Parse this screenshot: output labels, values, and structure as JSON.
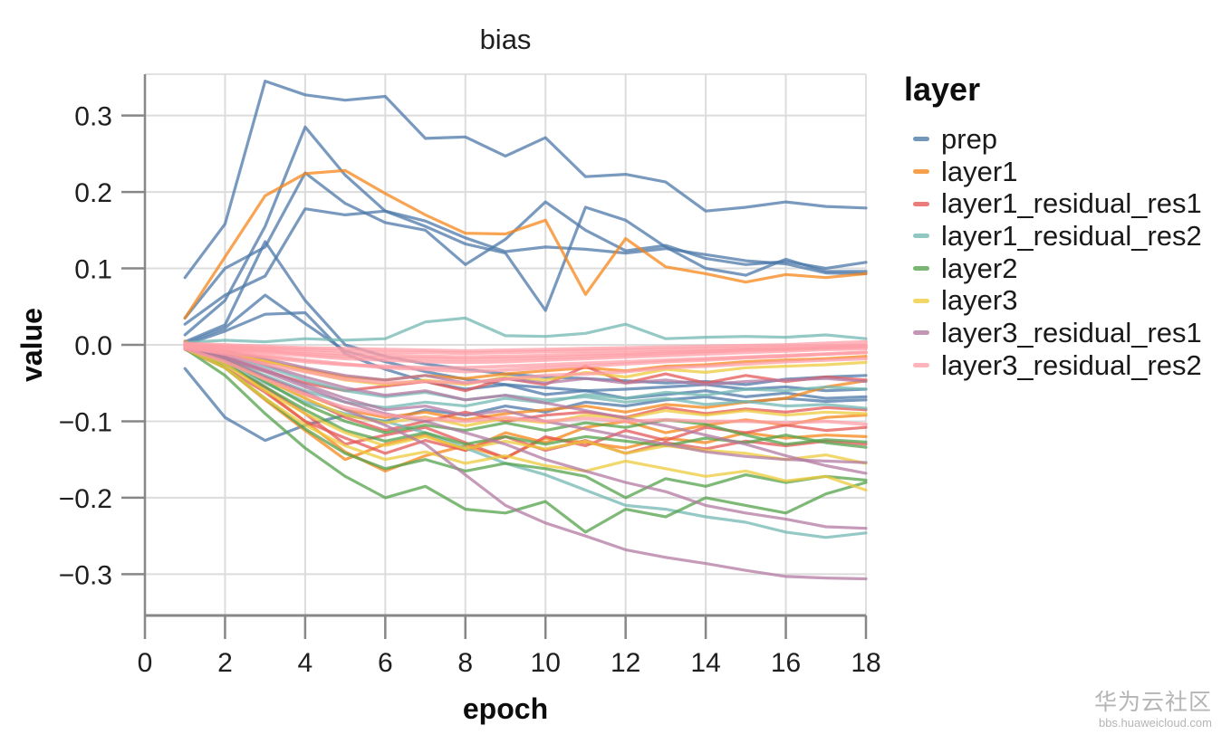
{
  "chart_data": {
    "type": "line",
    "title": "bias",
    "xlabel": "epoch",
    "ylabel": "value",
    "legend_title": "layer",
    "legend_position": "right",
    "grid": true,
    "xlim": [
      0,
      18
    ],
    "ylim": [
      -0.354,
      0.354
    ],
    "x_ticks": [
      0,
      2,
      4,
      6,
      8,
      10,
      12,
      14,
      16,
      18
    ],
    "y_ticks": [
      0.3,
      0.2,
      0.1,
      0.0,
      -0.1,
      -0.2,
      -0.3
    ],
    "x": [
      1,
      2,
      3,
      4,
      5,
      6,
      7,
      8,
      9,
      10,
      11,
      12,
      13,
      14,
      15,
      16,
      17,
      18
    ],
    "series": [
      {
        "name": "prep",
        "color": "#4c78a8",
        "lines": [
          [
            0.088,
            0.158,
            0.345,
            0.327,
            0.32,
            0.325,
            0.27,
            0.272,
            0.247,
            0.271,
            0.22,
            0.223,
            0.213,
            0.175,
            0.18,
            0.187,
            0.181,
            0.179
          ],
          [
            0.013,
            0.058,
            0.155,
            0.285,
            0.222,
            0.175,
            0.155,
            0.132,
            0.12,
            0.045,
            0.18,
            0.163,
            0.128,
            0.1,
            0.091,
            0.112,
            0.096,
            0.096
          ],
          [
            0.035,
            0.1,
            0.128,
            0.225,
            0.185,
            0.16,
            0.15,
            0.105,
            0.138,
            0.187,
            0.15,
            0.123,
            0.13,
            0.113,
            0.105,
            0.109,
            0.1,
            0.108
          ],
          [
            0.027,
            0.065,
            0.09,
            0.178,
            0.17,
            0.175,
            0.162,
            0.14,
            0.122,
            0.128,
            0.125,
            0.12,
            0.126,
            0.118,
            0.11,
            0.106,
            0.094,
            0.093
          ],
          [
            0.004,
            0.026,
            0.135,
            0.058,
            0.0,
            -0.015,
            -0.025,
            -0.032,
            -0.038,
            -0.042,
            -0.044,
            -0.047,
            -0.05,
            -0.048,
            -0.052,
            -0.045,
            -0.042,
            -0.04
          ],
          [
            0.002,
            0.022,
            0.065,
            0.028,
            -0.008,
            -0.022,
            -0.035,
            -0.045,
            -0.052,
            -0.056,
            -0.06,
            -0.058,
            -0.055,
            -0.052,
            -0.058,
            -0.055,
            -0.06,
            -0.058
          ],
          [
            0.0,
            0.018,
            0.04,
            0.042,
            -0.012,
            -0.032,
            -0.048,
            -0.058,
            -0.052,
            -0.065,
            -0.06,
            -0.07,
            -0.065,
            -0.06,
            -0.068,
            -0.063,
            -0.07,
            -0.068
          ],
          [
            -0.031,
            -0.095,
            -0.125,
            -0.105,
            -0.092,
            -0.1,
            -0.085,
            -0.092,
            -0.08,
            -0.088,
            -0.075,
            -0.08,
            -0.072,
            -0.068,
            -0.075,
            -0.07,
            -0.074,
            -0.072
          ]
        ]
      },
      {
        "name": "layer1",
        "color": "#f58518",
        "lines": [
          [
            0.035,
            0.115,
            0.195,
            0.224,
            0.228,
            0.198,
            0.17,
            0.146,
            0.145,
            0.163,
            0.066,
            0.139,
            0.102,
            0.093,
            0.082,
            0.092,
            0.088,
            0.093
          ],
          [
            0.005,
            -0.02,
            -0.06,
            -0.1,
            -0.14,
            -0.165,
            -0.145,
            -0.132,
            -0.148,
            -0.122,
            -0.128,
            -0.135,
            -0.122,
            -0.128,
            -0.115,
            -0.122,
            -0.118,
            -0.12
          ],
          [
            0.0,
            -0.03,
            -0.072,
            -0.112,
            -0.15,
            -0.13,
            -0.118,
            -0.138,
            -0.115,
            -0.128,
            -0.108,
            -0.1,
            -0.115,
            -0.105,
            -0.098,
            -0.105,
            -0.095,
            -0.092
          ],
          [
            -0.005,
            -0.012,
            -0.022,
            -0.032,
            -0.042,
            -0.046,
            -0.04,
            -0.044,
            -0.038,
            -0.034,
            -0.03,
            -0.034,
            -0.028,
            -0.026,
            -0.022,
            -0.02,
            -0.018,
            -0.015
          ],
          [
            0.002,
            -0.018,
            -0.042,
            -0.065,
            -0.085,
            -0.095,
            -0.088,
            -0.098,
            -0.09,
            -0.085,
            -0.08,
            -0.088,
            -0.078,
            -0.082,
            -0.075,
            -0.07,
            -0.055,
            -0.047
          ]
        ]
      },
      {
        "name": "layer1_residual_res1",
        "color": "#e45756",
        "lines": [
          [
            -0.005,
            -0.025,
            -0.055,
            -0.09,
            -0.13,
            -0.118,
            -0.108,
            -0.128,
            -0.148,
            -0.12,
            -0.132,
            -0.112,
            -0.125,
            -0.108,
            -0.115,
            -0.105,
            -0.112,
            -0.108
          ],
          [
            -0.002,
            -0.02,
            -0.045,
            -0.07,
            -0.095,
            -0.112,
            -0.1,
            -0.088,
            -0.1,
            -0.092,
            -0.088,
            -0.095,
            -0.082,
            -0.09,
            -0.084,
            -0.088,
            -0.082,
            -0.085
          ],
          [
            -0.004,
            -0.016,
            -0.034,
            -0.05,
            -0.06,
            -0.054,
            -0.048,
            -0.06,
            -0.044,
            -0.052,
            -0.028,
            -0.05,
            -0.038,
            -0.05,
            -0.04,
            -0.048,
            -0.042,
            -0.046
          ],
          [
            -0.006,
            -0.03,
            -0.062,
            -0.1,
            -0.122,
            -0.142,
            -0.125,
            -0.138,
            -0.12,
            -0.138,
            -0.125,
            -0.142,
            -0.128,
            -0.136,
            -0.126,
            -0.132,
            -0.126,
            -0.13
          ]
        ]
      },
      {
        "name": "layer1_residual_res2",
        "color": "#72b7b2",
        "lines": [
          [
            0.003,
            0.006,
            0.004,
            0.008,
            0.006,
            0.008,
            0.03,
            0.035,
            0.012,
            0.011,
            0.015,
            0.027,
            0.008,
            0.01,
            0.011,
            0.01,
            0.013,
            0.008
          ],
          [
            -0.005,
            -0.025,
            -0.05,
            -0.075,
            -0.09,
            -0.1,
            -0.115,
            -0.135,
            -0.155,
            -0.17,
            -0.19,
            -0.21,
            -0.215,
            -0.225,
            -0.232,
            -0.245,
            -0.252,
            -0.246
          ],
          [
            -0.003,
            -0.018,
            -0.04,
            -0.06,
            -0.075,
            -0.082,
            -0.075,
            -0.08,
            -0.07,
            -0.076,
            -0.065,
            -0.07,
            -0.062,
            -0.066,
            -0.058,
            -0.06,
            -0.055,
            -0.058
          ],
          [
            0.0,
            -0.012,
            -0.028,
            -0.046,
            -0.06,
            -0.068,
            -0.062,
            -0.072,
            -0.066,
            -0.072,
            -0.068,
            -0.075,
            -0.07,
            -0.078,
            -0.074,
            -0.08,
            -0.078,
            -0.083
          ]
        ]
      },
      {
        "name": "layer2",
        "color": "#54a24b",
        "lines": [
          [
            -0.005,
            -0.04,
            -0.09,
            -0.135,
            -0.172,
            -0.2,
            -0.185,
            -0.215,
            -0.22,
            -0.205,
            -0.245,
            -0.215,
            -0.225,
            -0.2,
            -0.21,
            -0.22,
            -0.195,
            -0.18
          ],
          [
            -0.003,
            -0.03,
            -0.07,
            -0.11,
            -0.142,
            -0.162,
            -0.15,
            -0.165,
            -0.155,
            -0.162,
            -0.172,
            -0.2,
            -0.175,
            -0.185,
            -0.17,
            -0.18,
            -0.172,
            -0.177
          ],
          [
            -0.002,
            -0.025,
            -0.055,
            -0.085,
            -0.112,
            -0.126,
            -0.115,
            -0.13,
            -0.12,
            -0.13,
            -0.12,
            -0.126,
            -0.132,
            -0.122,
            -0.128,
            -0.118,
            -0.128,
            -0.134
          ],
          [
            -0.004,
            -0.02,
            -0.048,
            -0.078,
            -0.1,
            -0.115,
            -0.105,
            -0.112,
            -0.102,
            -0.112,
            -0.102,
            -0.108,
            -0.098,
            -0.104,
            -0.118,
            -0.13,
            -0.124,
            -0.127
          ]
        ]
      },
      {
        "name": "layer3",
        "color": "#eeca3b",
        "lines": [
          [
            -0.005,
            -0.03,
            -0.07,
            -0.105,
            -0.132,
            -0.15,
            -0.14,
            -0.155,
            -0.145,
            -0.158,
            -0.165,
            -0.152,
            -0.162,
            -0.172,
            -0.165,
            -0.178,
            -0.172,
            -0.19
          ],
          [
            -0.003,
            -0.025,
            -0.06,
            -0.09,
            -0.115,
            -0.132,
            -0.12,
            -0.136,
            -0.126,
            -0.136,
            -0.126,
            -0.142,
            -0.132,
            -0.138,
            -0.142,
            -0.15,
            -0.144,
            -0.155
          ],
          [
            -0.002,
            -0.02,
            -0.045,
            -0.07,
            -0.092,
            -0.102,
            -0.094,
            -0.106,
            -0.096,
            -0.102,
            -0.092,
            -0.096,
            -0.086,
            -0.092,
            -0.086,
            -0.092,
            -0.088,
            -0.09
          ],
          [
            0.002,
            -0.008,
            -0.02,
            -0.035,
            -0.046,
            -0.052,
            -0.046,
            -0.052,
            -0.042,
            -0.046,
            -0.036,
            -0.042,
            -0.032,
            -0.036,
            -0.03,
            -0.028,
            -0.026,
            -0.023
          ]
        ]
      },
      {
        "name": "layer3_residual_res1",
        "color": "#b279a2",
        "lines": [
          [
            -0.005,
            -0.02,
            -0.042,
            -0.062,
            -0.085,
            -0.105,
            -0.13,
            -0.17,
            -0.21,
            -0.233,
            -0.25,
            -0.268,
            -0.278,
            -0.286,
            -0.295,
            -0.303,
            -0.305,
            -0.306
          ],
          [
            -0.004,
            -0.018,
            -0.035,
            -0.055,
            -0.075,
            -0.09,
            -0.1,
            -0.115,
            -0.13,
            -0.15,
            -0.165,
            -0.18,
            -0.192,
            -0.21,
            -0.22,
            -0.228,
            -0.238,
            -0.24
          ],
          [
            -0.003,
            -0.015,
            -0.032,
            -0.052,
            -0.07,
            -0.085,
            -0.08,
            -0.092,
            -0.086,
            -0.1,
            -0.11,
            -0.12,
            -0.13,
            -0.14,
            -0.146,
            -0.15,
            -0.152,
            -0.154
          ],
          [
            -0.002,
            -0.012,
            -0.026,
            -0.042,
            -0.056,
            -0.066,
            -0.06,
            -0.072,
            -0.066,
            -0.076,
            -0.086,
            -0.096,
            -0.106,
            -0.118,
            -0.13,
            -0.145,
            -0.158,
            -0.168
          ],
          [
            -0.001,
            -0.008,
            -0.018,
            -0.03,
            -0.04,
            -0.046,
            -0.04,
            -0.05,
            -0.044,
            -0.05,
            -0.044,
            -0.05,
            -0.046,
            -0.052,
            -0.048,
            -0.046,
            -0.044,
            -0.048
          ]
        ]
      },
      {
        "name": "layer3_residual_res2",
        "color": "#ff9da6",
        "lines": [
          [
            0.002,
            0.0,
            -0.002,
            -0.004,
            -0.005,
            -0.006,
            -0.007,
            -0.008,
            -0.007,
            -0.006,
            -0.005,
            -0.004,
            -0.003,
            -0.002,
            -0.001,
            0.0,
            0.002,
            0.004
          ],
          [
            0.0,
            -0.003,
            -0.006,
            -0.009,
            -0.012,
            -0.014,
            -0.015,
            -0.016,
            -0.015,
            -0.014,
            -0.012,
            -0.011,
            -0.009,
            -0.008,
            -0.006,
            -0.005,
            -0.003,
            -0.001
          ],
          [
            -0.002,
            -0.006,
            -0.01,
            -0.014,
            -0.018,
            -0.02,
            -0.022,
            -0.023,
            -0.022,
            -0.02,
            -0.018,
            -0.016,
            -0.014,
            -0.012,
            -0.01,
            -0.008,
            -0.006,
            -0.005
          ],
          [
            -0.004,
            -0.01,
            -0.016,
            -0.022,
            -0.026,
            -0.028,
            -0.03,
            -0.03,
            -0.028,
            -0.026,
            -0.024,
            -0.022,
            -0.02,
            -0.018,
            -0.016,
            -0.014,
            -0.012,
            -0.01
          ],
          [
            -0.003,
            -0.012,
            -0.025,
            -0.035,
            -0.045,
            -0.05,
            -0.048,
            -0.05,
            -0.045,
            -0.04,
            -0.038,
            -0.035,
            -0.03,
            -0.028,
            -0.025,
            -0.022,
            -0.02,
            -0.018
          ],
          [
            0.001,
            -0.002,
            -0.004,
            -0.006,
            -0.008,
            -0.01,
            -0.01,
            -0.011,
            -0.01,
            -0.009,
            -0.008,
            -0.007,
            -0.006,
            -0.005,
            -0.004,
            -0.003,
            -0.002,
            0.0
          ],
          [
            -0.001,
            -0.005,
            -0.008,
            -0.012,
            -0.015,
            -0.017,
            -0.018,
            -0.019,
            -0.018,
            -0.017,
            -0.015,
            -0.013,
            -0.011,
            -0.009,
            -0.007,
            -0.006,
            -0.004,
            -0.003
          ],
          [
            0.0,
            -0.008,
            -0.014,
            -0.02,
            -0.025,
            -0.03,
            -0.032,
            -0.035,
            -0.033,
            -0.03,
            -0.028,
            -0.025,
            -0.022,
            -0.02,
            -0.017,
            -0.015,
            -0.012,
            -0.01
          ],
          [
            -0.005,
            -0.022,
            -0.045,
            -0.065,
            -0.082,
            -0.092,
            -0.096,
            -0.1,
            -0.095,
            -0.1,
            -0.096,
            -0.1,
            -0.098,
            -0.1,
            -0.1,
            -0.102,
            -0.1,
            -0.104
          ]
        ]
      }
    ],
    "style": {
      "grid_color": "#dcdcdc",
      "axis_color": "#878787",
      "border_color": "#d9d9d9",
      "label_color": "#1f1f1f"
    }
  },
  "watermark": {
    "line1": "华为云社区",
    "line2": "bbs.huaweicloud.com"
  }
}
